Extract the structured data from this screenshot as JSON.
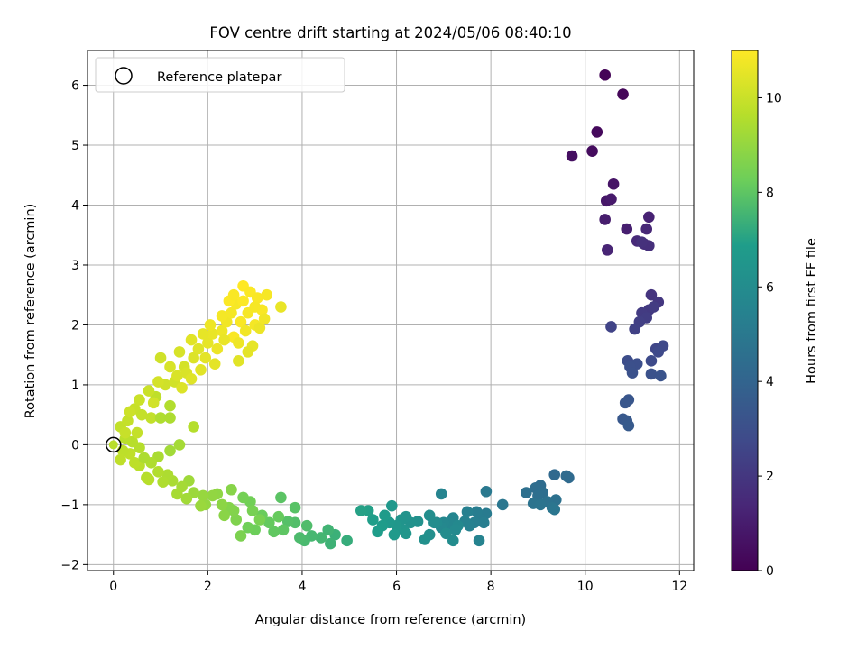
{
  "chart_data": {
    "type": "scatter",
    "title": "FOV centre drift starting at 2024/05/06 08:40:10",
    "xlabel": "Angular distance from reference (arcmin)",
    "ylabel": "Rotation from reference (arcmin)",
    "xlim": [
      -0.55,
      12.3
    ],
    "ylim": [
      -2.1,
      6.58
    ],
    "xticks": [
      "0",
      "2",
      "4",
      "6",
      "8",
      "10",
      "12"
    ],
    "yticks": [
      "−2",
      "−1",
      "0",
      "1",
      "2",
      "3",
      "4",
      "5",
      "6"
    ],
    "xtick_values": [
      0,
      2,
      4,
      6,
      8,
      10,
      12
    ],
    "ytick_values": [
      -2,
      -1,
      0,
      1,
      2,
      3,
      4,
      5,
      6
    ],
    "grid": true,
    "legend": {
      "position": "top-left",
      "entries": [
        "Reference platepar"
      ]
    },
    "reference_point": {
      "x": 0,
      "y": 0
    },
    "colorbar": {
      "label": "Hours from first FF file",
      "colormap": "viridis",
      "range": [
        0,
        11
      ],
      "ticks": [
        "0",
        "2",
        "4",
        "6",
        "8",
        "10"
      ],
      "tick_values": [
        0,
        2,
        4,
        6,
        8,
        10
      ]
    },
    "colormap_stops": [
      "#440154",
      "#482777",
      "#3f4a8a",
      "#31678e",
      "#26838f",
      "#1f9d8a",
      "#6cce5a",
      "#b6de2b",
      "#fee825"
    ],
    "points": [
      [
        10.42,
        6.17,
        0.1
      ],
      [
        10.8,
        5.85,
        0.2
      ],
      [
        10.25,
        5.22,
        0.3
      ],
      [
        10.15,
        4.9,
        0.4
      ],
      [
        9.72,
        4.82,
        0.5
      ],
      [
        10.6,
        4.35,
        0.7
      ],
      [
        10.45,
        4.07,
        0.8
      ],
      [
        10.55,
        4.1,
        0.9
      ],
      [
        10.42,
        3.76,
        1.0
      ],
      [
        10.88,
        3.6,
        1.1
      ],
      [
        11.35,
        3.8,
        1.2
      ],
      [
        10.47,
        3.25,
        1.3
      ],
      [
        11.3,
        3.6,
        1.4
      ],
      [
        11.1,
        3.4,
        1.5
      ],
      [
        11.25,
        3.35,
        1.6
      ],
      [
        11.35,
        3.32,
        1.7
      ],
      [
        11.2,
        3.38,
        1.75
      ],
      [
        11.4,
        2.5,
        1.9
      ],
      [
        11.55,
        2.38,
        2.0
      ],
      [
        11.35,
        2.25,
        2.1
      ],
      [
        11.2,
        2.2,
        2.15
      ],
      [
        11.45,
        2.3,
        2.2
      ],
      [
        11.3,
        2.12,
        2.25
      ],
      [
        11.15,
        2.05,
        2.3
      ],
      [
        11.05,
        1.93,
        2.4
      ],
      [
        10.55,
        1.97,
        2.5
      ],
      [
        11.5,
        1.6,
        2.6
      ],
      [
        11.65,
        1.65,
        2.7
      ],
      [
        11.55,
        1.55,
        2.75
      ],
      [
        11.4,
        1.4,
        2.8
      ],
      [
        10.9,
        1.4,
        2.9
      ],
      [
        11.1,
        1.35,
        3.0
      ],
      [
        10.95,
        1.3,
        3.05
      ],
      [
        11.0,
        1.2,
        3.1
      ],
      [
        11.4,
        1.18,
        3.15
      ],
      [
        11.6,
        1.15,
        3.2
      ],
      [
        10.92,
        0.75,
        3.3
      ],
      [
        10.85,
        0.7,
        3.35
      ],
      [
        10.8,
        0.43,
        3.4
      ],
      [
        10.88,
        0.4,
        3.45
      ],
      [
        10.92,
        0.32,
        3.5
      ],
      [
        9.35,
        -0.5,
        4.2
      ],
      [
        9.65,
        -0.55,
        4.25
      ],
      [
        9.6,
        -0.52,
        4.3
      ],
      [
        9.05,
        -0.68,
        4.35
      ],
      [
        8.95,
        -0.72,
        4.4
      ],
      [
        9.1,
        -0.8,
        4.45
      ],
      [
        9.0,
        -0.85,
        4.5
      ],
      [
        8.75,
        -0.8,
        4.55
      ],
      [
        9.38,
        -0.92,
        4.6
      ],
      [
        9.2,
        -0.95,
        4.65
      ],
      [
        8.9,
        -0.98,
        4.7
      ],
      [
        9.05,
        -1.0,
        4.75
      ],
      [
        9.3,
        -1.05,
        4.8
      ],
      [
        9.35,
        -1.08,
        4.85
      ],
      [
        8.25,
        -1.0,
        4.9
      ],
      [
        7.9,
        -0.78,
        5.0
      ],
      [
        7.9,
        -1.15,
        5.1
      ],
      [
        7.8,
        -1.25,
        5.15
      ],
      [
        7.7,
        -1.12,
        5.2
      ],
      [
        7.85,
        -1.3,
        5.25
      ],
      [
        7.65,
        -1.3,
        5.3
      ],
      [
        7.5,
        -1.12,
        5.35
      ],
      [
        7.55,
        -1.35,
        5.4
      ],
      [
        7.45,
        -1.28,
        5.45
      ],
      [
        7.75,
        -1.6,
        5.5
      ],
      [
        6.95,
        -0.82,
        5.55
      ],
      [
        7.2,
        -1.22,
        5.6
      ],
      [
        7.15,
        -1.32,
        5.65
      ],
      [
        7.0,
        -1.3,
        5.7
      ],
      [
        6.95,
        -1.38,
        5.75
      ],
      [
        7.3,
        -1.35,
        5.8
      ],
      [
        7.25,
        -1.42,
        5.85
      ],
      [
        6.85,
        -1.3,
        5.9
      ],
      [
        7.05,
        -1.48,
        5.95
      ],
      [
        7.2,
        -1.6,
        6.0
      ],
      [
        6.8,
        -1.3,
        6.05
      ],
      [
        6.7,
        -1.18,
        6.1
      ],
      [
        6.7,
        -1.5,
        6.15
      ],
      [
        6.6,
        -1.58,
        6.2
      ],
      [
        6.45,
        -1.28,
        6.25
      ],
      [
        6.3,
        -1.3,
        6.3
      ],
      [
        6.2,
        -1.2,
        6.35
      ],
      [
        6.1,
        -1.25,
        6.4
      ],
      [
        6.15,
        -1.42,
        6.45
      ],
      [
        6.2,
        -1.48,
        6.5
      ],
      [
        6.0,
        -1.35,
        6.55
      ],
      [
        5.9,
        -1.02,
        6.6
      ],
      [
        5.85,
        -1.3,
        6.65
      ],
      [
        5.95,
        -1.5,
        6.7
      ],
      [
        5.75,
        -1.18,
        6.75
      ],
      [
        5.7,
        -1.35,
        6.8
      ],
      [
        5.6,
        -1.45,
        6.85
      ],
      [
        5.5,
        -1.25,
        6.9
      ],
      [
        5.4,
        -1.1,
        6.95
      ],
      [
        5.25,
        -1.1,
        7.0
      ],
      [
        4.95,
        -1.6,
        7.3
      ],
      [
        4.7,
        -1.5,
        7.4
      ],
      [
        4.6,
        -1.65,
        7.45
      ],
      [
        4.55,
        -1.42,
        7.5
      ],
      [
        4.4,
        -1.55,
        7.55
      ],
      [
        4.2,
        -1.52,
        7.6
      ],
      [
        4.05,
        -1.6,
        7.65
      ],
      [
        3.95,
        -1.55,
        7.7
      ],
      [
        4.1,
        -1.35,
        7.75
      ],
      [
        3.85,
        -1.3,
        7.8
      ],
      [
        3.7,
        -1.28,
        7.85
      ],
      [
        3.85,
        -1.05,
        7.9
      ],
      [
        3.55,
        -0.88,
        7.95
      ],
      [
        3.6,
        -1.42,
        8.0
      ],
      [
        3.4,
        -1.45,
        8.05
      ],
      [
        3.3,
        -1.3,
        8.1
      ],
      [
        3.5,
        -1.2,
        8.15
      ],
      [
        3.15,
        -1.18,
        8.2
      ],
      [
        3.0,
        -1.42,
        8.25
      ],
      [
        2.85,
        -1.38,
        8.3
      ],
      [
        2.9,
        -0.95,
        8.35
      ],
      [
        2.75,
        -0.88,
        8.4
      ],
      [
        2.95,
        -1.1,
        8.45
      ],
      [
        3.1,
        -1.25,
        8.5
      ],
      [
        2.7,
        -1.52,
        8.55
      ],
      [
        2.6,
        -1.25,
        8.6
      ],
      [
        2.55,
        -1.1,
        8.65
      ],
      [
        2.45,
        -1.05,
        8.7
      ],
      [
        2.5,
        -0.75,
        8.75
      ],
      [
        2.35,
        -1.18,
        8.8
      ],
      [
        2.3,
        -1.0,
        8.85
      ],
      [
        2.2,
        -0.82,
        8.9
      ],
      [
        2.1,
        -0.85,
        8.95
      ],
      [
        1.95,
        -1.0,
        9.0
      ],
      [
        1.9,
        -0.85,
        9.05
      ],
      [
        1.85,
        -1.02,
        9.1
      ],
      [
        1.7,
        -0.8,
        9.15
      ],
      [
        1.6,
        -0.6,
        9.2
      ],
      [
        1.55,
        -0.9,
        9.25
      ],
      [
        1.45,
        -0.7,
        9.3
      ],
      [
        1.35,
        -0.82,
        9.35
      ],
      [
        1.25,
        -0.6,
        9.4
      ],
      [
        1.15,
        -0.5,
        9.45
      ],
      [
        1.05,
        -0.62,
        9.5
      ],
      [
        0.95,
        -0.45,
        9.55
      ],
      [
        0.7,
        -0.55,
        9.6
      ],
      [
        0.75,
        -0.58,
        9.65
      ],
      [
        0.55,
        -0.35,
        9.7
      ],
      [
        0.45,
        -0.3,
        9.75
      ],
      [
        0.35,
        -0.15,
        9.8
      ],
      [
        1.4,
        0.0,
        9.3
      ],
      [
        1.2,
        -0.1,
        9.25
      ],
      [
        0.95,
        -0.2,
        9.4
      ],
      [
        0.8,
        -0.3,
        9.5
      ],
      [
        0.65,
        -0.22,
        9.45
      ],
      [
        0.55,
        -0.05,
        9.6
      ],
      [
        0.4,
        0.05,
        9.65
      ],
      [
        0.25,
        0.1,
        9.7
      ],
      [
        0.2,
        -0.1,
        9.75
      ],
      [
        0.15,
        -0.25,
        9.8
      ],
      [
        0.15,
        0.3,
        9.85
      ],
      [
        0.3,
        0.4,
        9.9
      ],
      [
        0.45,
        0.6,
        9.95
      ],
      [
        0.6,
        0.5,
        9.9
      ],
      [
        0.8,
        0.45,
        9.85
      ],
      [
        1.0,
        0.45,
        9.5
      ],
      [
        1.2,
        0.45,
        9.45
      ],
      [
        1.7,
        0.3,
        9.6
      ],
      [
        1.2,
        0.65,
        9.55
      ],
      [
        0.9,
        0.8,
        9.8
      ],
      [
        0.75,
        0.9,
        10.0
      ],
      [
        0.55,
        0.75,
        10.0
      ],
      [
        0.35,
        0.55,
        10.05
      ],
      [
        0.25,
        0.2,
        9.95
      ],
      [
        0.5,
        0.2,
        9.9
      ],
      [
        1.0,
        1.45,
        10.1
      ],
      [
        1.1,
        1.0,
        10.1
      ],
      [
        1.3,
        1.05,
        10.15
      ],
      [
        1.5,
        1.3,
        10.2
      ],
      [
        1.4,
        1.55,
        10.25
      ],
      [
        1.55,
        1.2,
        10.3
      ],
      [
        1.7,
        1.45,
        10.35
      ],
      [
        1.8,
        1.6,
        10.4
      ],
      [
        1.65,
        1.75,
        10.45
      ],
      [
        1.95,
        1.45,
        10.5
      ],
      [
        2.0,
        1.7,
        10.55
      ],
      [
        2.1,
        1.85,
        10.6
      ],
      [
        2.2,
        1.6,
        10.65
      ],
      [
        2.3,
        1.9,
        10.7
      ],
      [
        2.4,
        2.05,
        10.75
      ],
      [
        2.5,
        2.2,
        10.8
      ],
      [
        2.6,
        2.35,
        10.85
      ],
      [
        2.7,
        2.05,
        10.9
      ],
      [
        2.55,
        1.8,
        10.9
      ],
      [
        2.45,
        2.4,
        10.95
      ],
      [
        2.75,
        2.65,
        11.0
      ],
      [
        2.9,
        2.55,
        10.95
      ],
      [
        3.05,
        2.45,
        10.9
      ],
      [
        3.25,
        2.5,
        10.85
      ],
      [
        3.15,
        2.25,
        10.9
      ],
      [
        2.85,
        2.2,
        10.85
      ],
      [
        3.0,
        2.0,
        10.8
      ],
      [
        2.8,
        1.9,
        10.75
      ],
      [
        2.65,
        1.7,
        10.7
      ],
      [
        3.1,
        1.95,
        10.65
      ],
      [
        3.55,
        2.3,
        10.6
      ],
      [
        2.95,
        1.65,
        10.55
      ],
      [
        2.15,
        1.35,
        10.5
      ],
      [
        1.85,
        1.25,
        10.45
      ],
      [
        1.65,
        1.1,
        10.4
      ],
      [
        1.45,
        0.95,
        10.35
      ],
      [
        1.35,
        1.15,
        10.3
      ],
      [
        1.2,
        1.3,
        10.25
      ],
      [
        0.95,
        1.05,
        10.2
      ],
      [
        0.85,
        0.7,
        10.15
      ],
      [
        2.85,
        1.55,
        10.5
      ],
      [
        2.65,
        1.4,
        10.45
      ],
      [
        2.35,
        1.75,
        10.6
      ],
      [
        1.9,
        1.85,
        10.55
      ],
      [
        2.05,
        2.0,
        10.7
      ],
      [
        2.3,
        2.15,
        10.8
      ],
      [
        2.55,
        2.5,
        10.9
      ],
      [
        2.75,
        2.4,
        10.95
      ],
      [
        3.0,
        2.3,
        10.85
      ],
      [
        3.2,
        2.1,
        10.75
      ]
    ]
  }
}
